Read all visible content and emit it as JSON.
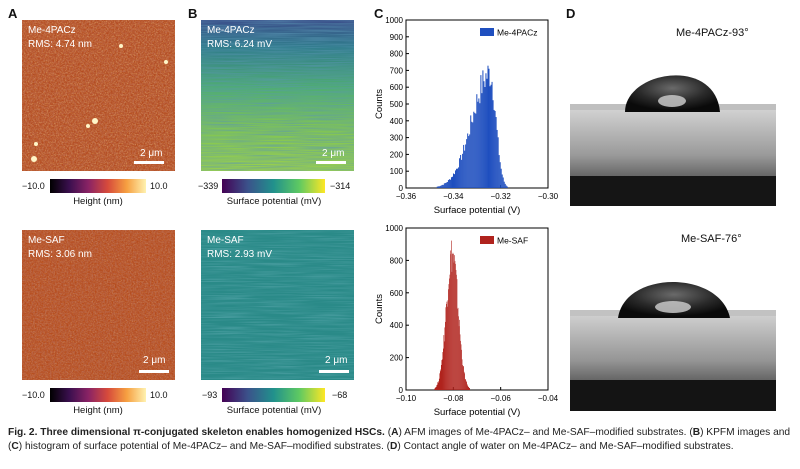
{
  "panels": {
    "A": "A",
    "B": "B",
    "C": "C",
    "D": "D"
  },
  "afm": {
    "top": {
      "sample": "Me-4PACz",
      "rms": "RMS: 4.74 nm",
      "scale": "2 μm"
    },
    "bottom": {
      "sample": "Me-SAF",
      "rms": "RMS: 3.06 nm",
      "scale": "2 μm"
    },
    "colorbar": {
      "min": "−10.0",
      "max": "10.0",
      "title": "Height (nm)"
    }
  },
  "kpfm": {
    "top": {
      "sample": "Me-4PACz",
      "rms": "RMS: 6.24 mV",
      "scale": "2 μm",
      "cb_min": "−339",
      "cb_max": "−314",
      "cb_title": "Surface potential (mV)"
    },
    "bottom": {
      "sample": "Me-SAF",
      "rms": "RMS: 2.93 mV",
      "scale": "2 μm",
      "cb_min": "−93",
      "cb_max": "−68",
      "cb_title": "Surface potential (mV)"
    }
  },
  "chart_data": [
    {
      "type": "bar",
      "title": "",
      "legend": "Me-4PACz",
      "color": "#1f4fbf",
      "xlabel": "Surface potential (V)",
      "ylabel": "Counts",
      "xlim": [
        -0.36,
        -0.3
      ],
      "ylim": [
        0,
        1000
      ],
      "xticks": [
        "−0.36",
        "−0.34",
        "−0.32",
        "−0.30"
      ],
      "yticks": [
        "0",
        "100",
        "200",
        "300",
        "400",
        "500",
        "600",
        "700",
        "800",
        "900",
        "1000"
      ],
      "peak_x": -0.3245,
      "peak_count": 680,
      "x_min": -0.347,
      "x_max": -0.317
    },
    {
      "type": "bar",
      "title": "",
      "legend": "Me-SAF",
      "color": "#b0231d",
      "xlabel": "Surface potential (V)",
      "ylabel": "Counts",
      "xlim": [
        -0.1,
        -0.04
      ],
      "ylim": [
        0,
        1000
      ],
      "xticks": [
        "−0.10",
        "−0.08",
        "−0.06",
        "−0.04"
      ],
      "yticks": [
        "0",
        "200",
        "400",
        "600",
        "800",
        "1000"
      ],
      "peak_x": -0.0805,
      "peak_count": 840,
      "x_min": -0.088,
      "x_max": -0.073
    }
  ],
  "contact_angle": {
    "top": "Me-4PACz-93°",
    "bottom": "Me-SAF-76°"
  },
  "caption": {
    "bold": "Fig. 2. Three dimensional π-conjugated skeleton enables homogenized HSCs.",
    "s1": " (",
    "a": "A",
    "s2": ") AFM images of Me-4PACz– and Me-SAF–modified substrates. (",
    "b": "B",
    "s3": ") KPFM images and (",
    "c": "C",
    "s4": ") histogram of surface potential of Me-4PACz– and Me-SAF–modified substrates. (",
    "d": "D",
    "s5": ") Contact angle of water on Me-4PACz– and Me-SAF–modified substrates."
  }
}
